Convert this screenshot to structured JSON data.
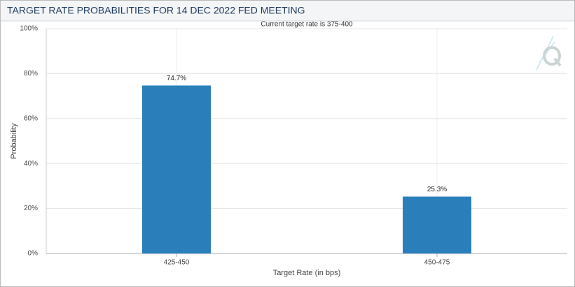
{
  "chart_data": {
    "type": "bar",
    "title": "TARGET RATE PROBABILITIES FOR 14 DEC 2022 FED MEETING",
    "subtitle": "Current target rate is 375-400",
    "x_label": "Target Rate (in bps)",
    "y_label": "Probability",
    "categories": [
      "425-450",
      "450-475"
    ],
    "values": [
      74.7,
      25.3
    ],
    "value_labels": [
      "74.7%",
      "25.3%"
    ],
    "color": "#2a7fba",
    "ylim": [
      0,
      100
    ],
    "yticks": [
      {
        "value": 0,
        "label": "0%"
      },
      {
        "value": 20,
        "label": "20%"
      },
      {
        "value": 40,
        "label": "40%"
      },
      {
        "value": 60,
        "label": "60%"
      },
      {
        "value": 80,
        "label": "80%"
      },
      {
        "value": 100,
        "label": "100%"
      }
    ],
    "grid": true
  }
}
